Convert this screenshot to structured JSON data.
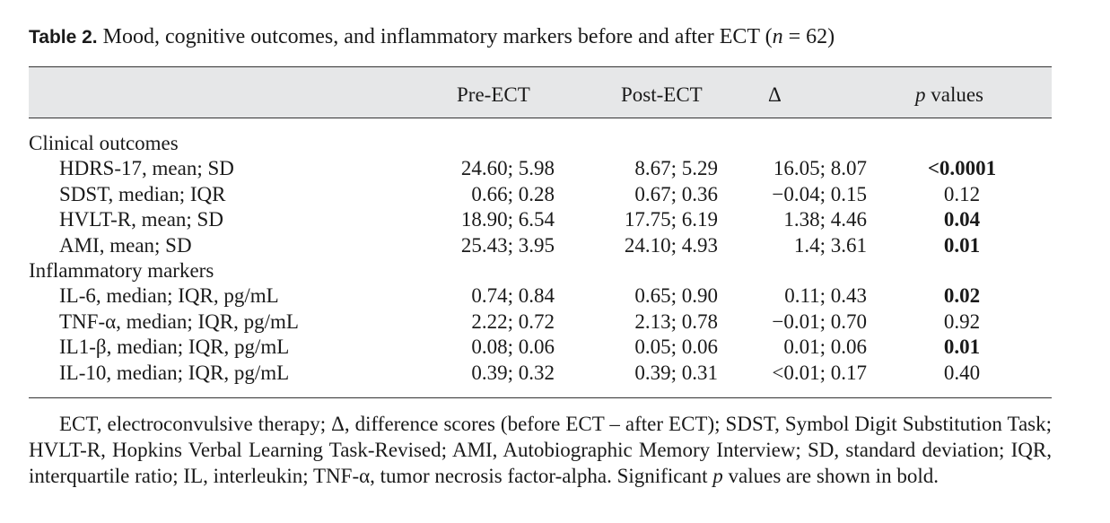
{
  "caption": {
    "label": "Table 2.",
    "text_before_n": " Mood, cognitive outcomes, and inflammatory markers before and after ECT (",
    "n_symbol": "n",
    "text_after_n": " = 62)"
  },
  "headers": {
    "pre": "Pre-ECT",
    "post": "Post-ECT",
    "delta": "Δ",
    "p_italic": "p",
    "p_rest": " values"
  },
  "sections": [
    {
      "title": "Clinical outcomes",
      "rows": [
        {
          "label": "HDRS-17, mean; SD",
          "pre": "24.60; 5.98",
          "post": "8.67; 5.29",
          "delta": "16.05; 8.07",
          "p": "<0.0001",
          "p_bold": true
        },
        {
          "label": "SDST, median; IQR",
          "pre": "0.66; 0.28",
          "post": "0.67; 0.36",
          "delta": "−0.04; 0.15",
          "p": "0.12",
          "p_bold": false
        },
        {
          "label": "HVLT-R, mean; SD",
          "pre": "18.90; 6.54",
          "post": "17.75; 6.19",
          "delta": "1.38; 4.46",
          "p": "0.04",
          "p_bold": true
        },
        {
          "label": "AMI, mean; SD",
          "pre": "25.43; 3.95",
          "post": "24.10; 4.93",
          "delta": "1.4; 3.61",
          "p": "0.01",
          "p_bold": true
        }
      ]
    },
    {
      "title": "Inflammatory markers",
      "rows": [
        {
          "label": "IL-6, median; IQR, pg/mL",
          "pre": "0.74; 0.84",
          "post": "0.65; 0.90",
          "delta": "0.11; 0.43",
          "p": "0.02",
          "p_bold": true
        },
        {
          "label": "TNF-α, median; IQR, pg/mL",
          "pre": "2.22; 0.72",
          "post": "2.13; 0.78",
          "delta": "−0.01; 0.70",
          "p": "0.92",
          "p_bold": false
        },
        {
          "label": "IL1-β, median; IQR, pg/mL",
          "pre": "0.08; 0.06",
          "post": "0.05; 0.06",
          "delta": "0.01; 0.06",
          "p": "0.01",
          "p_bold": true
        },
        {
          "label": "IL-10, median; IQR, pg/mL",
          "pre": "0.39; 0.32",
          "post": "0.39; 0.31",
          "delta": "<0.01; 0.17",
          "p": "0.40",
          "p_bold": false
        }
      ]
    }
  ],
  "footnote": {
    "part1": "ECT, electroconvulsive therapy; Δ, difference scores (before ECT – after ECT); SDST, Symbol Digit Substitution Task; HVLT-R, Hopkins Verbal Learning Task-Revised; AMI, Autobiographic Memory Interview; SD, standard deviation; IQR, interquartile ratio; IL, interleukin; TNF-α, tumor necrosis factor-alpha. Significant ",
    "p_italic": "p",
    "part2": " values are shown in bold."
  }
}
